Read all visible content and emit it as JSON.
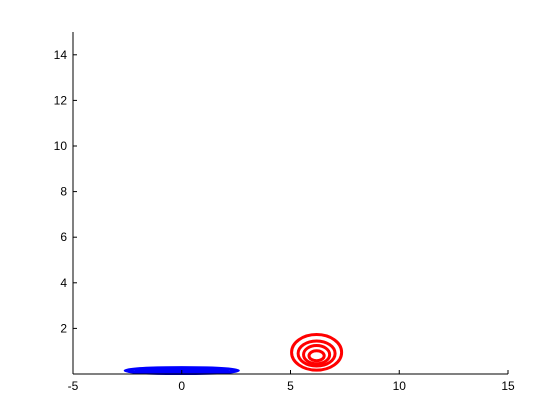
{
  "chart_data": {
    "type": "contour",
    "title": "",
    "xlabel": "",
    "ylabel": "",
    "xlim": [
      -5,
      15
    ],
    "ylim": [
      0,
      15
    ],
    "xticks": [
      -5,
      0,
      5,
      10,
      15
    ],
    "yticks": [
      2,
      4,
      6,
      8,
      10,
      12,
      14
    ],
    "grid": false,
    "box": "left-bottom",
    "series": [
      {
        "color": "#0000ff",
        "levels": [
          {
            "cx": 0,
            "cy": 0.15,
            "rx": 2.6,
            "ry": 0.13
          },
          {
            "cx": 0,
            "cy": 0.15,
            "rx": 2.1,
            "ry": 0.09
          },
          {
            "cx": 0,
            "cy": 0.15,
            "rx": 1.6,
            "ry": 0.06
          },
          {
            "cx": 0,
            "cy": 0.15,
            "rx": 1.1,
            "ry": 0.035
          }
        ]
      },
      {
        "color": "#ff0000",
        "levels": [
          {
            "cx": 6.2,
            "cy": 0.95,
            "rx": 1.15,
            "ry": 0.78
          },
          {
            "cx": 6.2,
            "cy": 0.9,
            "rx": 0.85,
            "ry": 0.55
          },
          {
            "cx": 6.2,
            "cy": 0.85,
            "rx": 0.6,
            "ry": 0.4
          },
          {
            "cx": 6.2,
            "cy": 0.8,
            "rx": 0.35,
            "ry": 0.22
          }
        ]
      }
    ]
  }
}
